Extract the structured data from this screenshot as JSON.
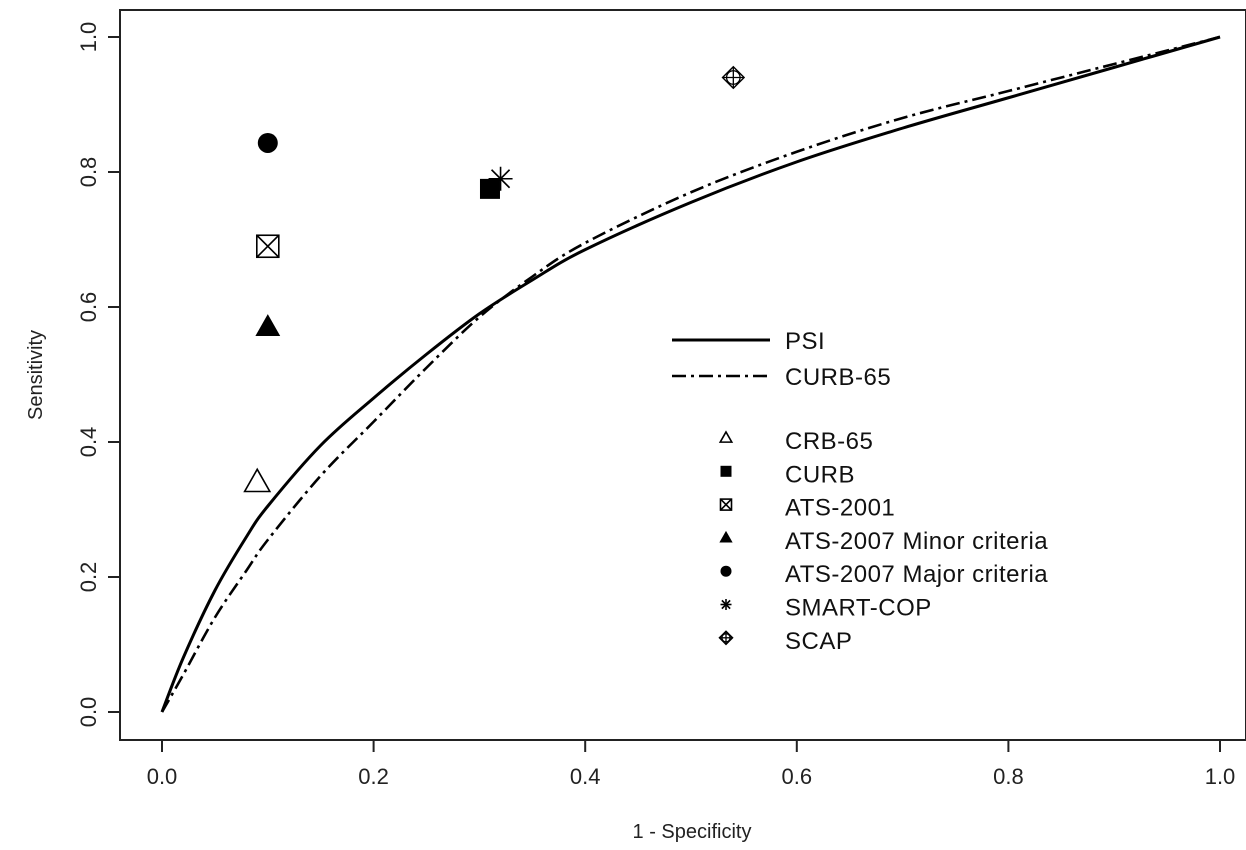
{
  "chart_data": {
    "type": "line",
    "title": "",
    "xlabel": "1 - Specificity",
    "ylabel": "Sensitivity",
    "xlim": [
      0.0,
      1.0
    ],
    "ylim": [
      0.0,
      1.0
    ],
    "x_ticks": [
      "0.0",
      "0.2",
      "0.4",
      "0.6",
      "0.8",
      "1.0"
    ],
    "y_ticks": [
      "0.0",
      "0.2",
      "0.4",
      "0.6",
      "0.8",
      "1.0"
    ],
    "grid": false,
    "legend_position": "right",
    "curves": [
      {
        "name": "PSI",
        "style": "solid",
        "color": "#000000",
        "x": [
          0.0,
          0.02,
          0.05,
          0.08,
          0.1,
          0.15,
          0.2,
          0.25,
          0.3,
          0.35,
          0.4,
          0.5,
          0.6,
          0.7,
          0.8,
          0.9,
          1.0
        ],
        "y": [
          0.0,
          0.08,
          0.18,
          0.26,
          0.305,
          0.395,
          0.465,
          0.53,
          0.59,
          0.64,
          0.685,
          0.755,
          0.815,
          0.865,
          0.91,
          0.955,
          1.0
        ]
      },
      {
        "name": "CURB-65",
        "style": "dashdot",
        "color": "#000000",
        "x": [
          0.0,
          0.02,
          0.05,
          0.08,
          0.1,
          0.15,
          0.2,
          0.25,
          0.3,
          0.35,
          0.4,
          0.5,
          0.6,
          0.7,
          0.8,
          0.9,
          1.0
        ],
        "y": [
          0.0,
          0.055,
          0.14,
          0.21,
          0.255,
          0.35,
          0.43,
          0.51,
          0.585,
          0.645,
          0.695,
          0.77,
          0.83,
          0.88,
          0.92,
          0.96,
          1.0
        ]
      }
    ],
    "points": [
      {
        "name": "CRB-65",
        "symbol": "triangle-open",
        "x": 0.09,
        "y": 0.34
      },
      {
        "name": "CURB",
        "symbol": "square-filled",
        "x": 0.31,
        "y": 0.775
      },
      {
        "name": "ATS-2001",
        "symbol": "square-x",
        "x": 0.1,
        "y": 0.69
      },
      {
        "name": "ATS-2007 Minor criteria",
        "symbol": "triangle-filled",
        "x": 0.1,
        "y": 0.57
      },
      {
        "name": "ATS-2007 Major criteria",
        "symbol": "circle-filled",
        "x": 0.1,
        "y": 0.843
      },
      {
        "name": "SMART-COP",
        "symbol": "asterisk",
        "x": 0.32,
        "y": 0.79
      },
      {
        "name": "SCAP",
        "symbol": "diamond-plus",
        "x": 0.54,
        "y": 0.94
      }
    ]
  }
}
